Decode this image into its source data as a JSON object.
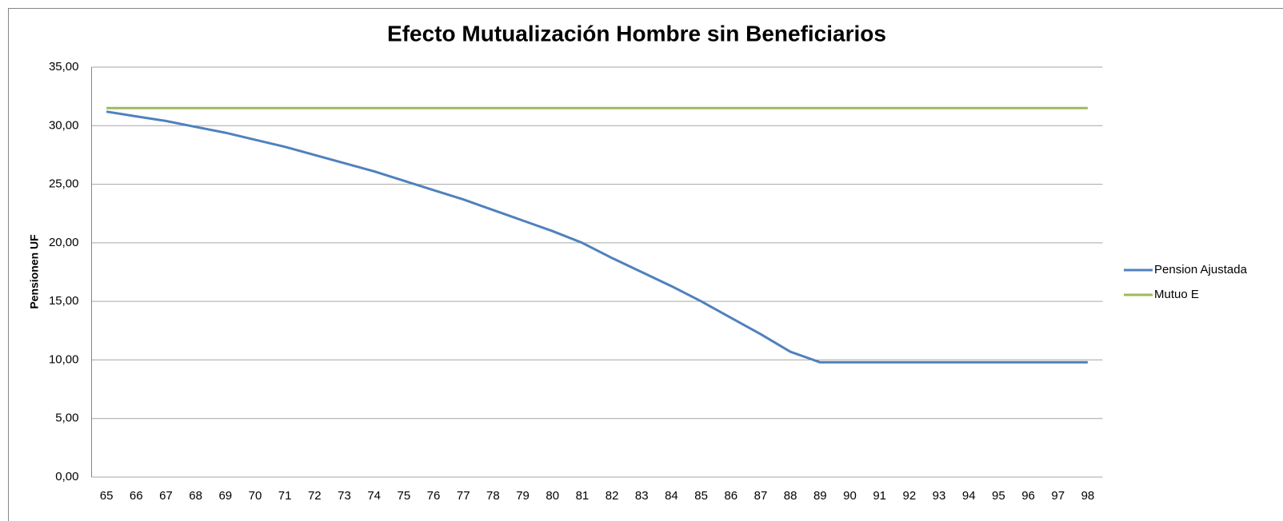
{
  "chart_data": {
    "type": "line",
    "title": "Efecto Mutualización Hombre sin Beneficiarios",
    "y_label": "Pensionen UF",
    "categories": [
      "65",
      "66",
      "67",
      "68",
      "69",
      "70",
      "71",
      "72",
      "73",
      "74",
      "75",
      "76",
      "77",
      "78",
      "79",
      "80",
      "81",
      "82",
      "83",
      "84",
      "85",
      "86",
      "87",
      "88",
      "89",
      "90",
      "91",
      "92",
      "93",
      "94",
      "95",
      "96",
      "97",
      "98"
    ],
    "series": [
      {
        "name": "Pension Ajustada",
        "color": "#4f81bd",
        "values": [
          31.2,
          30.8,
          30.4,
          29.9,
          29.4,
          28.8,
          28.2,
          27.5,
          26.8,
          26.1,
          25.3,
          24.5,
          23.7,
          22.8,
          21.9,
          21.0,
          20.0,
          18.7,
          17.5,
          16.3,
          15.0,
          13.6,
          12.2,
          10.7,
          9.8,
          9.8,
          9.8,
          9.8,
          9.8,
          9.8,
          9.8,
          9.8,
          9.8,
          9.8
        ]
      },
      {
        "name": "Mutuo E",
        "color": "#9bbb59",
        "values": [
          31.5,
          31.5,
          31.5,
          31.5,
          31.5,
          31.5,
          31.5,
          31.5,
          31.5,
          31.5,
          31.5,
          31.5,
          31.5,
          31.5,
          31.5,
          31.5,
          31.5,
          31.5,
          31.5,
          31.5,
          31.5,
          31.5,
          31.5,
          31.5,
          31.5,
          31.5,
          31.5,
          31.5,
          31.5,
          31.5,
          31.5,
          31.5,
          31.5,
          31.5
        ]
      }
    ],
    "ylim": [
      0,
      35
    ],
    "yticks": [
      {
        "value": 0,
        "label": "0,00"
      },
      {
        "value": 5,
        "label": "5,00"
      },
      {
        "value": 10,
        "label": "10,00"
      },
      {
        "value": 15,
        "label": "15,00"
      },
      {
        "value": 20,
        "label": "20,00"
      },
      {
        "value": 25,
        "label": "25,00"
      },
      {
        "value": 30,
        "label": "30,00"
      },
      {
        "value": 35,
        "label": "35,00"
      }
    ],
    "grid": true,
    "legend": "right"
  }
}
